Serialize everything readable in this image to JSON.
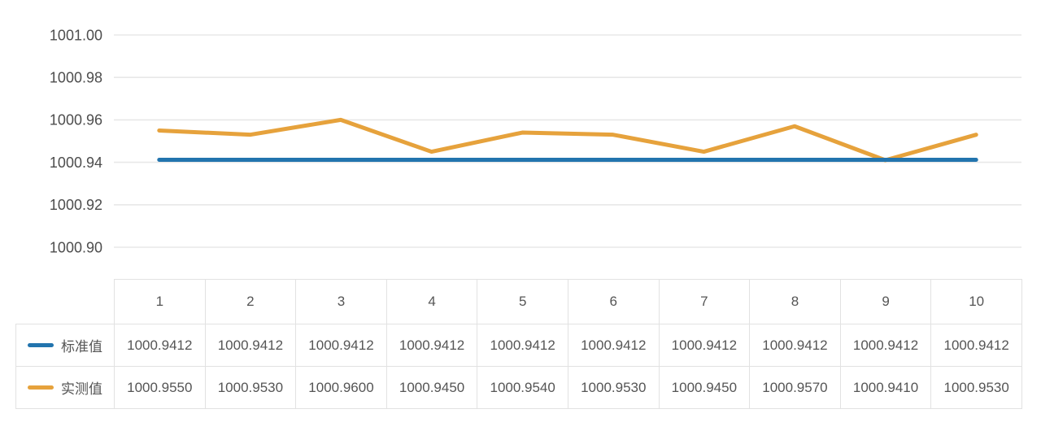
{
  "colors": {
    "standard": "#2274AE",
    "measured": "#E6A23C",
    "grid": "#e8e8e8",
    "table_border": "#e2e2e2",
    "axis_text": "#4d4d4d",
    "table_text": "#555555"
  },
  "chart_data": {
    "type": "line",
    "categories": [
      "1",
      "2",
      "3",
      "4",
      "5",
      "6",
      "7",
      "8",
      "9",
      "10"
    ],
    "series": [
      {
        "key": "standard",
        "name": "标准值",
        "color": "#2274AE",
        "values": [
          1000.9412,
          1000.9412,
          1000.9412,
          1000.9412,
          1000.9412,
          1000.9412,
          1000.9412,
          1000.9412,
          1000.9412,
          1000.9412
        ]
      },
      {
        "key": "measured",
        "name": "实测值",
        "color": "#E6A23C",
        "values": [
          1000.955,
          1000.953,
          1000.96,
          1000.945,
          1000.954,
          1000.953,
          1000.945,
          1000.957,
          1000.941,
          1000.953
        ]
      }
    ],
    "title": "",
    "xlabel": "",
    "ylabel": "",
    "ylim": [
      1000.9,
      1001.0
    ],
    "yticks": [
      "1001.00",
      "1000.98",
      "1000.96",
      "1000.94",
      "1000.92",
      "1000.90"
    ],
    "grid": true,
    "legend_position": "table-left"
  },
  "table": {
    "column_headers": [
      "1",
      "2",
      "3",
      "4",
      "5",
      "6",
      "7",
      "8",
      "9",
      "10"
    ],
    "rows": [
      {
        "key": "standard",
        "label": "标准值",
        "swatch_color": "#2274AE",
        "values": [
          "1000.9412",
          "1000.9412",
          "1000.9412",
          "1000.9412",
          "1000.9412",
          "1000.9412",
          "1000.9412",
          "1000.9412",
          "1000.9412",
          "1000.9412"
        ]
      },
      {
        "key": "measured",
        "label": "实测值",
        "swatch_color": "#E6A23C",
        "values": [
          "1000.9550",
          "1000.9530",
          "1000.9600",
          "1000.9450",
          "1000.9540",
          "1000.9530",
          "1000.9450",
          "1000.9570",
          "1000.9410",
          "1000.9530"
        ]
      }
    ]
  }
}
